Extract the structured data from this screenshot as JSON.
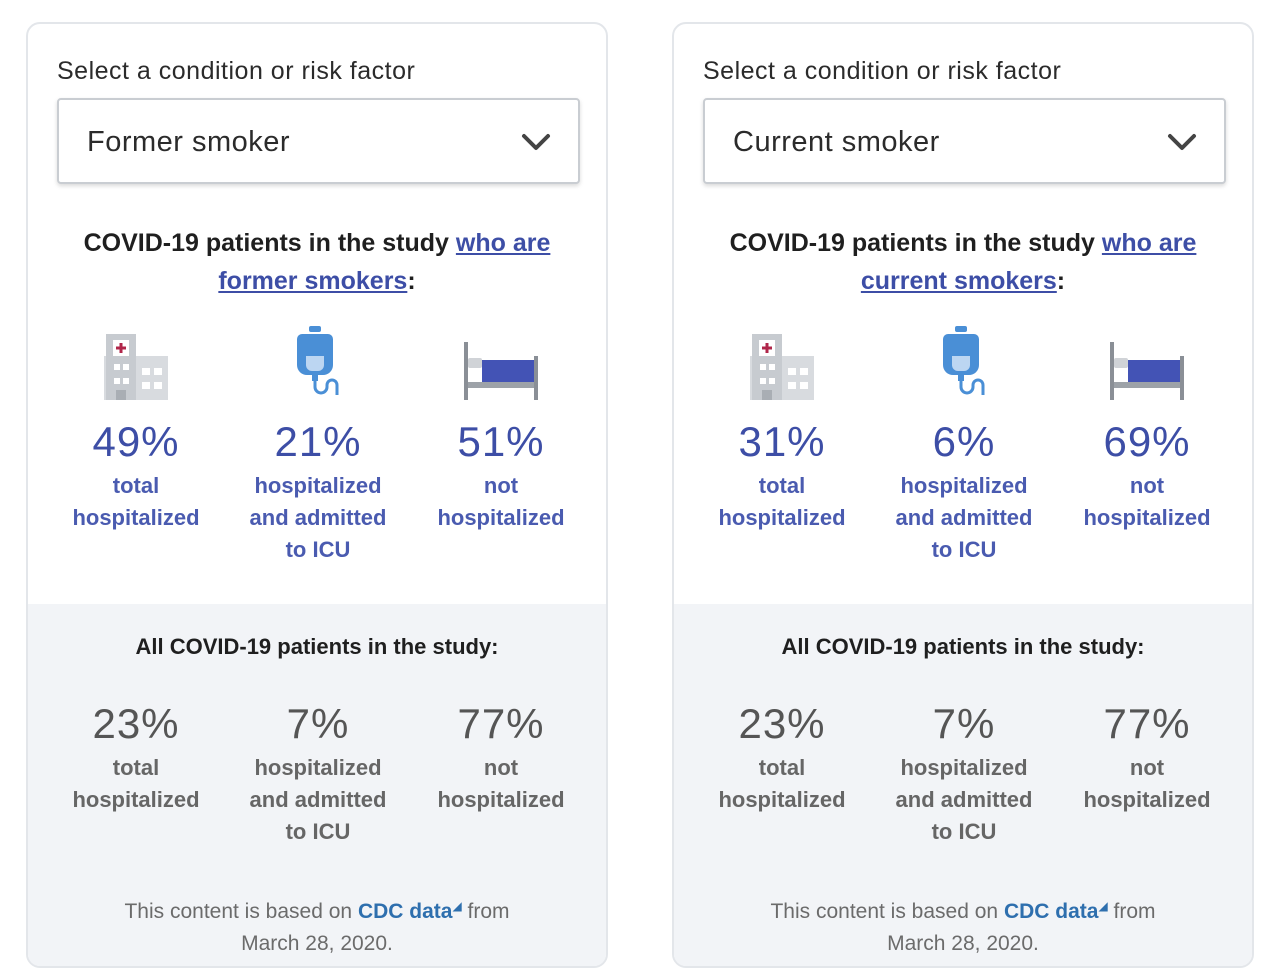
{
  "panels": [
    {
      "select_label": "Select a condition or risk factor",
      "selected": "Former smoker",
      "heading_prefix": "COVID-19 patients in the study ",
      "heading_link": "who are former smokers",
      "heading_suffix": ":",
      "stats": [
        {
          "pct": "49%",
          "caption_lines": [
            "total",
            "hospitalized"
          ],
          "icon": "hospital-building-icon"
        },
        {
          "pct": "21%",
          "caption_lines": [
            "hospitalized",
            "and admitted",
            "to ICU"
          ],
          "icon": "iv-bag-icon"
        },
        {
          "pct": "51%",
          "caption_lines": [
            "not",
            "hospitalized"
          ],
          "icon": "bed-icon"
        }
      ],
      "all_heading": "All COVID-19 patients in the study:",
      "all_stats": [
        {
          "pct": "23%",
          "caption_lines": [
            "total",
            "hospitalized"
          ]
        },
        {
          "pct": "7%",
          "caption_lines": [
            "hospitalized",
            "and admitted",
            "to ICU"
          ]
        },
        {
          "pct": "77%",
          "caption_lines": [
            "not",
            "hospitalized"
          ]
        }
      ],
      "footnote_prefix": "This content is based on ",
      "footnote_link": "CDC data",
      "footnote_suffix": " from",
      "footnote_date": "March 28, 2020."
    },
    {
      "select_label": "Select a condition or risk factor",
      "selected": "Current smoker",
      "heading_prefix": "COVID-19 patients in the study ",
      "heading_link": "who are current smokers",
      "heading_suffix": ":",
      "stats": [
        {
          "pct": "31%",
          "caption_lines": [
            "total",
            "hospitalized"
          ],
          "icon": "hospital-building-icon"
        },
        {
          "pct": "6%",
          "caption_lines": [
            "hospitalized",
            "and admitted",
            "to ICU"
          ],
          "icon": "iv-bag-icon"
        },
        {
          "pct": "69%",
          "caption_lines": [
            "not",
            "hospitalized"
          ],
          "icon": "bed-icon"
        }
      ],
      "all_heading": "All COVID-19 patients in the study:",
      "all_stats": [
        {
          "pct": "23%",
          "caption_lines": [
            "total",
            "hospitalized"
          ]
        },
        {
          "pct": "7%",
          "caption_lines": [
            "hospitalized",
            "and admitted",
            "to ICU"
          ]
        },
        {
          "pct": "77%",
          "caption_lines": [
            "not",
            "hospitalized"
          ]
        }
      ],
      "footnote_prefix": "This content is based on ",
      "footnote_link": "CDC data",
      "footnote_suffix": " from",
      "footnote_date": "March 28, 2020."
    }
  ],
  "colors": {
    "accent": "#3d4ea6",
    "link": "#2e6fae",
    "panel_bg": "#f2f4f7",
    "muted_text": "#555555",
    "hospital_cross": "#b0264a",
    "iv_blue": "#4a8fd6",
    "bed_blue": "#4353b5"
  }
}
